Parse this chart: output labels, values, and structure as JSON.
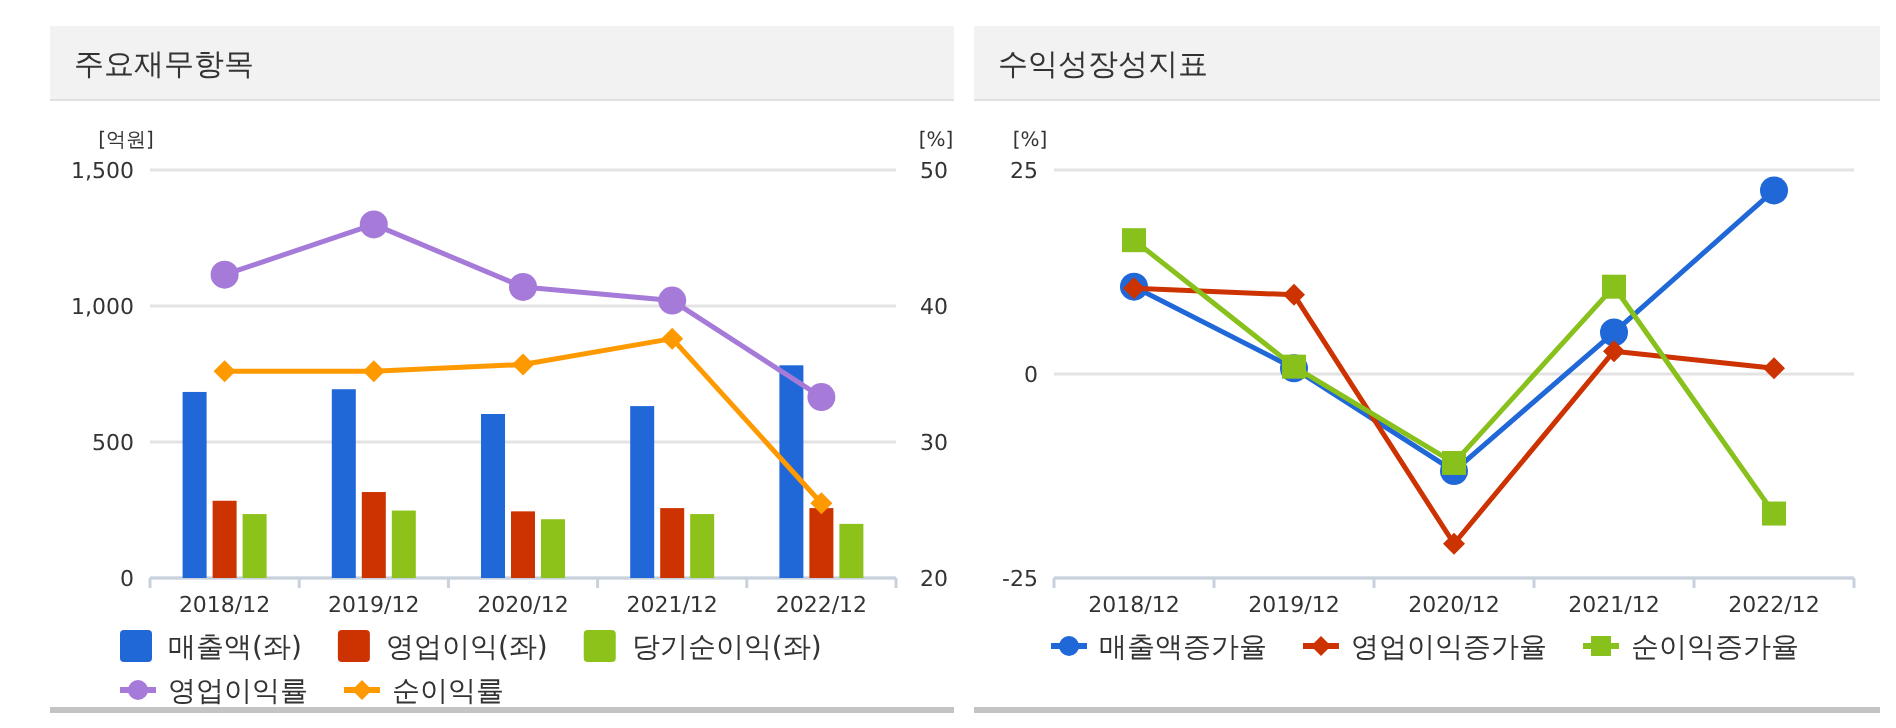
{
  "chart_data": [
    {
      "type": "bar",
      "title": "주요재무항목",
      "ylabel": "[억원]",
      "y2label": "[%]",
      "categories": [
        "2018/12",
        "2019/12",
        "2020/12",
        "2021/12",
        "2022/12"
      ],
      "series": [
        {
          "name": "매출액(좌)",
          "color": "#2068d8",
          "values": [
            684,
            694,
            603,
            632,
            782
          ]
        },
        {
          "name": "영업이익(좌)",
          "color": "#cc3300",
          "values": [
            284,
            316,
            245,
            257,
            257
          ]
        },
        {
          "name": "당기순이익(좌)",
          "color": "#8cc21a",
          "values": [
            235,
            248,
            216,
            235,
            199
          ]
        },
        {
          "name": "영업이익률",
          "color": "#a57ad8",
          "type": "line",
          "axis": "y2",
          "marker": "circle",
          "values": [
            42.3,
            46.0,
            41.4,
            40.4,
            33.3
          ]
        },
        {
          "name": "순이익률",
          "color": "#ff9900",
          "type": "line",
          "axis": "y2",
          "marker": "diamond",
          "values": [
            35.2,
            35.2,
            35.7,
            37.6,
            25.5
          ]
        }
      ],
      "ylim": [
        0,
        1500
      ],
      "yticks": [
        0,
        500,
        {
          "value": 1000,
          "label": "1,000"
        },
        {
          "value": 1500,
          "label": "1,500"
        }
      ],
      "y2lim": [
        20,
        50
      ],
      "y2ticks": [
        20,
        30,
        40,
        50
      ],
      "grid": "y",
      "legend": "bottom"
    },
    {
      "type": "line",
      "title": "수익성장성지표",
      "ylabel": "[%]",
      "categories": [
        "2018/12",
        "2019/12",
        "2020/12",
        "2021/12",
        "2022/12"
      ],
      "series": [
        {
          "name": "매출액증가율",
          "color": "#2068d8",
          "marker": "circle",
          "values": [
            10.7,
            0.7,
            -11.9,
            5.1,
            22.5
          ]
        },
        {
          "name": "영업이익증가율",
          "color": "#cc3300",
          "marker": "diamond",
          "values": [
            10.5,
            9.7,
            -20.8,
            2.8,
            0.7
          ]
        },
        {
          "name": "순이익증가율",
          "color": "#88c01c",
          "marker": "square",
          "values": [
            16.4,
            0.9,
            -10.9,
            10.7,
            -17.1
          ]
        }
      ],
      "ylim": [
        -25,
        25
      ],
      "yticks": [
        -25,
        0,
        25
      ],
      "grid": "y",
      "legend": "bottom"
    }
  ]
}
